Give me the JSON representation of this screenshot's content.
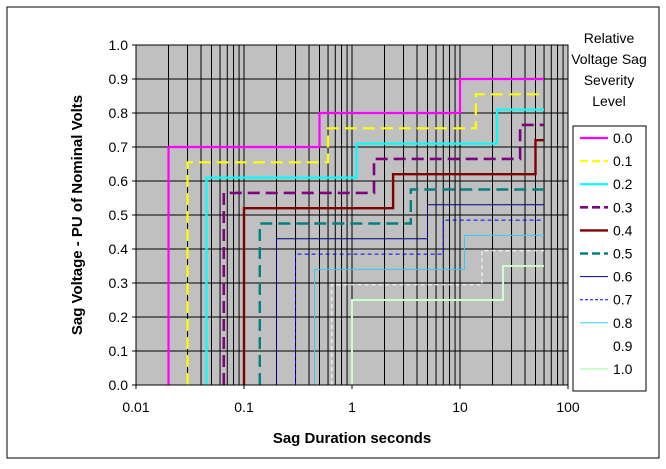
{
  "chart_data": {
    "type": "line",
    "title": "",
    "xlabel": "Sag Duration seconds",
    "ylabel": "Sag Voltage - PU of Nominal Volts",
    "xscale": "log",
    "xlim": [
      0.01,
      100
    ],
    "ylim": [
      0.0,
      1.0
    ],
    "xticks": [
      0.01,
      0.1,
      1,
      10,
      100
    ],
    "xtick_labels": [
      "0.01",
      "0.1",
      "1",
      "10",
      "100"
    ],
    "yticks": [
      0.0,
      0.1,
      0.2,
      0.3,
      0.4,
      0.5,
      0.6,
      0.7,
      0.8,
      0.9,
      1.0
    ],
    "ytick_labels": [
      "0.0",
      "0.1",
      "0.2",
      "0.3",
      "0.4",
      "0.5",
      "0.6",
      "0.7",
      "0.8",
      "0.9",
      "1.0"
    ],
    "grid": true,
    "plot_background": "#c0c0c0",
    "legend_title": "Relative Voltage Sag Severity Level",
    "legend_title_lines": [
      "Relative",
      "Voltage Sag",
      "Severity",
      "Level"
    ],
    "legend_position": "right",
    "series": [
      {
        "name": "0.0",
        "color": "#ff00ff",
        "dash": "solid",
        "width": 2.2,
        "x": [
          0.02,
          0.02,
          0.5,
          0.5,
          10,
          10,
          60
        ],
        "y": [
          0.0,
          0.7,
          0.7,
          0.8,
          0.8,
          0.9,
          0.9
        ]
      },
      {
        "name": "0.1",
        "color": "#ffff00",
        "dash": "long-dash",
        "width": 2.2,
        "x": [
          0.03,
          0.03,
          0.6,
          0.6,
          14,
          14,
          60
        ],
        "y": [
          0.0,
          0.655,
          0.655,
          0.755,
          0.755,
          0.855,
          0.855
        ]
      },
      {
        "name": "0.2",
        "color": "#00ffff",
        "dash": "solid",
        "width": 2.2,
        "x": [
          0.045,
          0.045,
          1.1,
          1.1,
          22,
          22,
          60
        ],
        "y": [
          0.0,
          0.61,
          0.61,
          0.71,
          0.71,
          0.81,
          0.81
        ]
      },
      {
        "name": "0.3",
        "color": "#800080",
        "dash": "long-dash",
        "width": 2.6,
        "x": [
          0.065,
          0.065,
          1.6,
          1.6,
          36,
          36,
          60
        ],
        "y": [
          0.0,
          0.565,
          0.565,
          0.665,
          0.665,
          0.765,
          0.765
        ]
      },
      {
        "name": "0.4",
        "color": "#800000",
        "dash": "solid",
        "width": 2.4,
        "x": [
          0.1,
          0.1,
          2.4,
          2.4,
          50,
          50,
          60
        ],
        "y": [
          0.0,
          0.52,
          0.52,
          0.62,
          0.62,
          0.72,
          0.72
        ]
      },
      {
        "name": "0.5",
        "color": "#008080",
        "dash": "long-dash",
        "width": 2.4,
        "x": [
          0.14,
          0.14,
          3.5,
          3.5,
          60
        ],
        "y": [
          0.0,
          0.475,
          0.475,
          0.575,
          0.575
        ]
      },
      {
        "name": "0.6",
        "color": "#000080",
        "dash": "solid",
        "width": 1,
        "x": [
          0.2,
          0.2,
          5,
          5,
          60
        ],
        "y": [
          0.0,
          0.43,
          0.43,
          0.53,
          0.53
        ]
      },
      {
        "name": "0.7",
        "color": "#0000ff",
        "dash": "dashed",
        "width": 1,
        "x": [
          0.3,
          0.3,
          7,
          7,
          60
        ],
        "y": [
          0.0,
          0.385,
          0.385,
          0.485,
          0.485
        ]
      },
      {
        "name": "0.8",
        "color": "#33ccff",
        "dash": "solid",
        "width": 1,
        "x": [
          0.45,
          0.45,
          11,
          11,
          60
        ],
        "y": [
          0.0,
          0.34,
          0.34,
          0.44,
          0.44
        ]
      },
      {
        "name": "0.9",
        "color": "#ffffff",
        "dash": "dashed",
        "width": 1,
        "x": [
          0.65,
          0.65,
          16,
          16,
          60
        ],
        "y": [
          0.0,
          0.295,
          0.295,
          0.395,
          0.395
        ]
      },
      {
        "name": "1.0",
        "color": "#ccffcc",
        "dash": "solid",
        "width": 2,
        "x": [
          1,
          1,
          25,
          25,
          60
        ],
        "y": [
          0.0,
          0.25,
          0.25,
          0.35,
          0.35
        ]
      }
    ]
  }
}
